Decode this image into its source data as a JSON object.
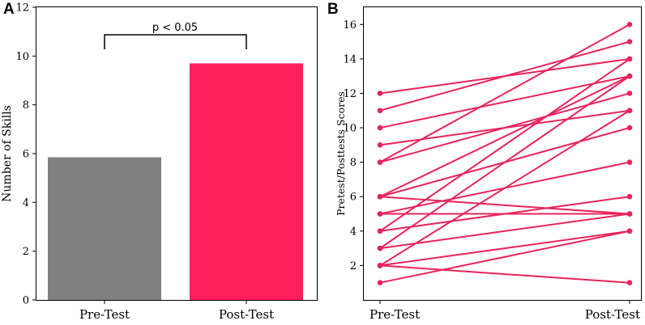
{
  "chart_data": [
    {
      "panel_label": "A",
      "type": "bar",
      "categories": [
        "Pre-Test",
        "Post-Test"
      ],
      "values": [
        5.85,
        9.7
      ],
      "colors": [
        "#808080",
        "#ff1f5b"
      ],
      "ylabel": "Number of Skills",
      "ylim": [
        0,
        12
      ],
      "yticks": [
        "0",
        "2",
        "4",
        "6",
        "8",
        "10",
        "12"
      ],
      "annotation": "p < 0.05",
      "grid": false
    },
    {
      "panel_label": "B",
      "type": "line",
      "categories": [
        "Pre-Test",
        "Post-Test"
      ],
      "ylabel": "Pretest/Posttests Scores",
      "ylim": [
        0,
        17
      ],
      "yticks": [
        "2",
        "4",
        "6",
        "8",
        "10",
        "12",
        "14",
        "16"
      ],
      "line_color": "#e8245a",
      "grid": false,
      "pairs": [
        [
          12,
          14
        ],
        [
          11,
          15
        ],
        [
          10,
          13
        ],
        [
          9,
          11
        ],
        [
          8,
          16
        ],
        [
          8,
          12
        ],
        [
          6,
          13
        ],
        [
          6,
          10
        ],
        [
          6,
          5
        ],
        [
          5,
          8
        ],
        [
          5,
          5
        ],
        [
          4,
          14
        ],
        [
          4,
          6
        ],
        [
          3,
          13
        ],
        [
          3,
          5
        ],
        [
          2,
          11
        ],
        [
          2,
          4
        ],
        [
          2,
          1
        ],
        [
          1,
          4
        ]
      ]
    }
  ]
}
